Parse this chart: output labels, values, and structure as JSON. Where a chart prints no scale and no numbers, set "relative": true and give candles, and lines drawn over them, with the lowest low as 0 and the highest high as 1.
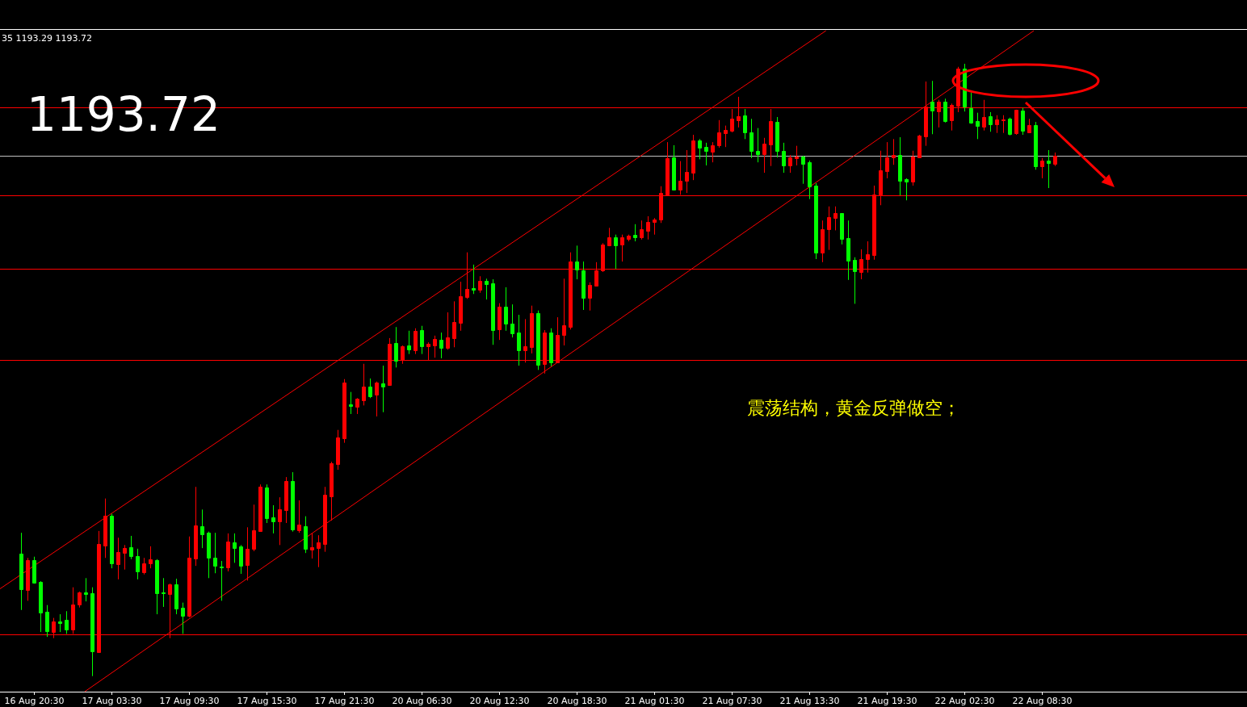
{
  "chart_data": {
    "type": "candlestick",
    "relative": true,
    "title": "35 1193.29 1193.72",
    "annotations": [
      "1193.72",
      "震荡结构，黄金反弹做空；"
    ],
    "categories": [
      null,
      null,
      "16 Aug 20:30",
      null,
      null,
      null,
      null,
      null,
      null,
      null,
      null,
      null,
      null,
      null,
      "17 Aug 03:30",
      null,
      null,
      null,
      null,
      null,
      null,
      null,
      null,
      null,
      null,
      null,
      "17 Aug 09:30",
      null,
      null,
      null,
      null,
      null,
      null,
      null,
      null,
      null,
      null,
      null,
      "17 Aug 15:30",
      null,
      null,
      null,
      null,
      null,
      null,
      null,
      null,
      null,
      null,
      null,
      "17 Aug 21:30",
      null,
      null,
      null,
      null,
      null,
      null,
      null,
      null,
      null,
      null,
      null,
      "20 Aug 06:30",
      null,
      null,
      null,
      null,
      null,
      null,
      null,
      null,
      null,
      null,
      null,
      "20 Aug 12:30",
      null,
      null,
      null,
      null,
      null,
      null,
      null,
      null,
      null,
      null,
      null,
      "20 Aug 18:30",
      null,
      null,
      null,
      null,
      null,
      null,
      null,
      null,
      null,
      null,
      null,
      "21 Aug 01:30",
      null,
      null,
      null,
      null,
      null,
      null,
      null,
      null,
      null,
      null,
      null,
      "21 Aug 07:30",
      null,
      null,
      null,
      null,
      null,
      null,
      null,
      null,
      null,
      null,
      null,
      "21 Aug 13:30",
      null,
      null,
      null,
      null,
      null,
      null,
      null,
      null,
      null,
      null,
      null,
      "21 Aug 19:30",
      null,
      null,
      null,
      null,
      null,
      null,
      null,
      null,
      null,
      null,
      null,
      "22 Aug 02:30",
      null,
      null,
      null,
      null,
      null,
      null,
      null,
      null,
      null,
      null,
      null,
      "22 Aug 08:30",
      null,
      null
    ],
    "ohlc": [
      [
        0.2,
        0.234,
        0.108,
        0.142
      ],
      [
        0.141,
        0.193,
        0.123,
        0.189
      ],
      [
        0.189,
        0.195,
        0.151,
        0.153
      ],
      [
        0.154,
        0.155,
        0.072,
        0.104
      ],
      [
        0.105,
        0.116,
        0.064,
        0.073
      ],
      [
        0.072,
        0.095,
        0.062,
        0.089
      ],
      [
        0.089,
        0.101,
        0.072,
        0.087
      ],
      [
        0.092,
        0.106,
        0.069,
        0.076
      ],
      [
        0.076,
        0.145,
        0.069,
        0.117
      ],
      [
        0.117,
        0.138,
        0.112,
        0.137
      ],
      [
        0.137,
        0.16,
        0.122,
        0.134
      ],
      [
        0.135,
        0.145,
        0,
        0.04
      ],
      [
        0.039,
        0.237,
        0.039,
        0.216
      ],
      [
        0.213,
        0.29,
        0.193,
        0.262
      ],
      [
        0.262,
        0.265,
        0.176,
        0.184
      ],
      [
        0.183,
        0.226,
        0.158,
        0.203
      ],
      [
        0.201,
        0.214,
        0.174,
        0.209
      ],
      [
        0.21,
        0.229,
        0.191,
        0.196
      ],
      [
        0.196,
        0.208,
        0.158,
        0.171
      ],
      [
        0.17,
        0.193,
        0.166,
        0.184
      ],
      [
        0.184,
        0.212,
        0.176,
        0.191
      ],
      [
        0.189,
        0.191,
        0.101,
        0.135
      ],
      [
        0.137,
        0.16,
        0.113,
        0.135
      ],
      [
        0.134,
        0.151,
        0.062,
        0.15
      ],
      [
        0.15,
        0.159,
        0.101,
        0.11
      ],
      [
        0.112,
        0.12,
        0.069,
        0.098
      ],
      [
        0.098,
        0.228,
        0.096,
        0.193
      ],
      [
        0.192,
        0.309,
        0.18,
        0.246
      ],
      [
        0.245,
        0.272,
        0.209,
        0.232
      ],
      [
        0.234,
        0.236,
        0.16,
        0.193
      ],
      [
        0.193,
        0.234,
        0.168,
        0.18
      ],
      [
        0.179,
        0.188,
        0.123,
        0.178
      ],
      [
        0.178,
        0.233,
        0.171,
        0.22
      ],
      [
        0.218,
        0.233,
        0.185,
        0.209
      ],
      [
        0.212,
        0.214,
        0.167,
        0.18
      ],
      [
        0.181,
        0.243,
        0.156,
        0.208
      ],
      [
        0.208,
        0.28,
        0.204,
        0.238
      ],
      [
        0.237,
        0.313,
        0.237,
        0.309
      ],
      [
        0.308,
        0.313,
        0.25,
        0.258
      ],
      [
        0.259,
        0.279,
        0.233,
        0.253
      ],
      [
        0.253,
        0.292,
        0.214,
        0.272
      ],
      [
        0.271,
        0.325,
        0.25,
        0.319
      ],
      [
        0.319,
        0.333,
        0.236,
        0.239
      ],
      [
        0.238,
        0.287,
        0.234,
        0.247
      ],
      [
        0.245,
        0.261,
        0.201,
        0.208
      ],
      [
        0.207,
        0.233,
        0.192,
        0.21
      ],
      [
        0.209,
        0.23,
        0.178,
        0.218
      ],
      [
        0.216,
        0.309,
        0.203,
        0.296
      ],
      [
        0.294,
        0.35,
        0.254,
        0.348
      ],
      [
        0.346,
        0.402,
        0.337,
        0.39
      ],
      [
        0.388,
        0.485,
        0.381,
        0.479
      ],
      [
        0.444,
        0.464,
        0.428,
        0.441
      ],
      [
        0.44,
        0.454,
        0.428,
        0.453
      ],
      [
        0.45,
        0.51,
        0.442,
        0.473
      ],
      [
        0.473,
        0.486,
        0.454,
        0.457
      ],
      [
        0.46,
        0.481,
        0.424,
        0.479
      ],
      [
        0.478,
        0.507,
        0.431,
        0.473
      ],
      [
        0.475,
        0.552,
        0.474,
        0.543
      ],
      [
        0.544,
        0.57,
        0.504,
        0.515
      ],
      [
        0.516,
        0.54,
        0.51,
        0.539
      ],
      [
        0.54,
        0.564,
        0.526,
        0.533
      ],
      [
        0.532,
        0.568,
        0.526,
        0.564
      ],
      [
        0.565,
        0.572,
        0.526,
        0.539
      ],
      [
        0.539,
        0.545,
        0.516,
        0.543
      ],
      [
        0.54,
        0.556,
        0.52,
        0.551
      ],
      [
        0.549,
        0.561,
        0.519,
        0.536
      ],
      [
        0.536,
        0.594,
        0.533,
        0.553
      ],
      [
        0.552,
        0.612,
        0.537,
        0.578
      ],
      [
        0.577,
        0.644,
        0.564,
        0.62
      ],
      [
        0.619,
        0.692,
        0.616,
        0.632
      ],
      [
        0.634,
        0.672,
        0.624,
        0.631
      ],
      [
        0.631,
        0.653,
        0.626,
        0.645
      ],
      [
        0.645,
        0.649,
        0.615,
        0.64
      ],
      [
        0.641,
        0.648,
        0.541,
        0.565
      ],
      [
        0.566,
        0.609,
        0.549,
        0.603
      ],
      [
        0.603,
        0.635,
        0.564,
        0.576
      ],
      [
        0.576,
        0.607,
        0.553,
        0.56
      ],
      [
        0.561,
        0.59,
        0.507,
        0.532
      ],
      [
        0.532,
        0.583,
        0.512,
        0.539
      ],
      [
        0.537,
        0.605,
        0.527,
        0.593
      ],
      [
        0.593,
        0.597,
        0.5,
        0.508
      ],
      [
        0.51,
        0.565,
        0.494,
        0.561
      ],
      [
        0.561,
        0.568,
        0.506,
        0.512
      ],
      [
        0.512,
        0.586,
        0.512,
        0.557
      ],
      [
        0.557,
        0.649,
        0.54,
        0.573
      ],
      [
        0.57,
        0.692,
        0.566,
        0.677
      ],
      [
        0.677,
        0.703,
        0.648,
        0.664
      ],
      [
        0.663,
        0.677,
        0.598,
        0.618
      ],
      [
        0.618,
        0.643,
        0.597,
        0.639
      ],
      [
        0.638,
        0.676,
        0.638,
        0.663
      ],
      [
        0.663,
        0.707,
        0.66,
        0.705
      ],
      [
        0.703,
        0.732,
        0.702,
        0.717
      ],
      [
        0.717,
        0.721,
        0.665,
        0.703
      ],
      [
        0.705,
        0.721,
        0.677,
        0.717
      ],
      [
        0.714,
        0.721,
        0.71,
        0.719
      ],
      [
        0.721,
        0.738,
        0.71,
        0.717
      ],
      [
        0.717,
        0.744,
        0.713,
        0.73
      ],
      [
        0.727,
        0.751,
        0.713,
        0.742
      ],
      [
        0.742,
        0.748,
        0.721,
        0.746
      ],
      [
        0.746,
        0.8,
        0.74,
        0.789
      ],
      [
        0.786,
        0.872,
        0.786,
        0.846
      ],
      [
        0.847,
        0.867,
        0.793,
        0.794
      ],
      [
        0.794,
        0.841,
        0.786,
        0.809
      ],
      [
        0.809,
        0.859,
        0.789,
        0.823
      ],
      [
        0.822,
        0.884,
        0.81,
        0.875
      ],
      [
        0.875,
        0.877,
        0.844,
        0.863
      ],
      [
        0.864,
        0.871,
        0.834,
        0.858
      ],
      [
        0.856,
        0.872,
        0.839,
        0.867
      ],
      [
        0.867,
        0.908,
        0.863,
        0.888
      ],
      [
        0.887,
        0.899,
        0.864,
        0.892
      ],
      [
        0.891,
        0.926,
        0.888,
        0.91
      ],
      [
        0.908,
        0.946,
        0.896,
        0.914
      ],
      [
        0.916,
        0.926,
        0.877,
        0.888
      ],
      [
        0.888,
        0.91,
        0.846,
        0.858
      ],
      [
        0.858,
        0.895,
        0.839,
        0.852
      ],
      [
        0.852,
        0.879,
        0.822,
        0.87
      ],
      [
        0.868,
        0.926,
        0.833,
        0.906
      ],
      [
        0.905,
        0.913,
        0.847,
        0.858
      ],
      [
        0.858,
        0.871,
        0.822,
        0.834
      ],
      [
        0.834,
        0.851,
        0.822,
        0.847
      ],
      [
        0.846,
        0.866,
        0.834,
        0.848
      ],
      [
        0.848,
        0.85,
        0.804,
        0.837
      ],
      [
        0.839,
        0.842,
        0.779,
        0.8
      ],
      [
        0.801,
        0.805,
        0.681,
        0.692
      ],
      [
        0.692,
        0.744,
        0.676,
        0.73
      ],
      [
        0.73,
        0.767,
        0.696,
        0.75
      ],
      [
        0.748,
        0.767,
        0.728,
        0.756
      ],
      [
        0.756,
        0.756,
        0.705,
        0.714
      ],
      [
        0.715,
        0.744,
        0.647,
        0.678
      ],
      [
        0.68,
        0.684,
        0.608,
        0.661
      ],
      [
        0.66,
        0.697,
        0.648,
        0.681
      ],
      [
        0.681,
        0.71,
        0.659,
        0.689
      ],
      [
        0.688,
        0.801,
        0.68,
        0.786
      ],
      [
        0.787,
        0.858,
        0.769,
        0.826
      ],
      [
        0.825,
        0.872,
        0.813,
        0.847
      ],
      [
        0.847,
        0.877,
        0.835,
        0.851
      ],
      [
        0.851,
        0.88,
        0.785,
        0.809
      ],
      [
        0.812,
        0.813,
        0.777,
        0.808
      ],
      [
        0.808,
        0.858,
        0.801,
        0.848
      ],
      [
        0.847,
        0.884,
        0.847,
        0.883
      ],
      [
        0.881,
        0.971,
        0.866,
        0.93
      ],
      [
        0.938,
        0.972,
        0.885,
        0.924
      ],
      [
        0.922,
        0.941,
        0.896,
        0.938
      ],
      [
        0.938,
        0.943,
        0.904,
        0.906
      ],
      [
        0.908,
        0.935,
        0.891,
        0.933
      ],
      [
        0.931,
        0.995,
        0.921,
        0.992
      ],
      [
        0.992,
        1,
        0.922,
        0.93
      ],
      [
        0.928,
        0.953,
        0.902,
        0.904
      ],
      [
        0.906,
        0.92,
        0.877,
        0.899
      ],
      [
        0.897,
        0.941,
        0.891,
        0.913
      ],
      [
        0.914,
        0.921,
        0.889,
        0.901
      ],
      [
        0.901,
        0.916,
        0.887,
        0.909
      ],
      [
        0.908,
        0.916,
        0.887,
        0.909
      ],
      [
        0.91,
        0.912,
        0.883,
        0.885
      ],
      [
        0.887,
        0.925,
        0.884,
        0.925
      ],
      [
        0.924,
        0.928,
        0.884,
        0.891
      ],
      [
        0.888,
        0.91,
        0.888,
        0.9
      ],
      [
        0.9,
        0.905,
        0.827,
        0.833
      ],
      [
        0.833,
        0.846,
        0.813,
        0.842
      ],
      [
        0.842,
        0.859,
        0.797,
        0.838
      ],
      [
        0.837,
        0.855,
        0.833,
        0.85
      ]
    ],
    "colors": [
      "#00ff00",
      "#ff0000",
      "#00ff00",
      "#00ff00",
      "#00ff00",
      "#ff0000",
      "#00ff00",
      "#00ff00",
      "#ff0000",
      "#ff0000",
      "#00ff00",
      "#00ff00",
      "#ff0000",
      "#ff0000",
      "#00ff00",
      "#ff0000",
      "#ff0000",
      "#00ff00",
      "#00ff00",
      "#ff0000",
      "#ff0000",
      "#00ff00",
      "#00ff00",
      "#ff0000",
      "#00ff00",
      "#00ff00",
      "#ff0000",
      "#ff0000",
      "#00ff00",
      "#00ff00",
      "#00ff00",
      "#00ff00",
      "#ff0000",
      "#00ff00",
      "#00ff00",
      "#ff0000",
      "#ff0000",
      "#ff0000",
      "#00ff00",
      "#00ff00",
      "#ff0000",
      "#ff0000",
      "#00ff00",
      "#ff0000",
      "#00ff00",
      "#ff0000",
      "#ff0000",
      "#ff0000",
      "#ff0000",
      "#ff0000",
      "#ff0000",
      "#00ff00",
      "#ff0000",
      "#ff0000",
      "#00ff00",
      "#ff0000",
      "#00ff00",
      "#ff0000",
      "#00ff00",
      "#ff0000",
      "#00ff00",
      "#ff0000",
      "#00ff00",
      "#ff0000",
      "#ff0000",
      "#00ff00",
      "#ff0000",
      "#ff0000",
      "#ff0000",
      "#ff0000",
      "#00ff00",
      "#ff0000",
      "#00ff00",
      "#00ff00",
      "#ff0000",
      "#00ff00",
      "#00ff00",
      "#00ff00",
      "#ff0000",
      "#ff0000",
      "#00ff00",
      "#ff0000",
      "#00ff00",
      "#ff0000",
      "#ff0000",
      "#ff0000",
      "#00ff00",
      "#00ff00",
      "#ff0000",
      "#ff0000",
      "#ff0000",
      "#ff0000",
      "#00ff00",
      "#ff0000",
      "#ff0000",
      "#00ff00",
      "#ff0000",
      "#ff0000",
      "#ff0000",
      "#ff0000",
      "#ff0000",
      "#00ff00",
      "#ff0000",
      "#ff0000",
      "#ff0000",
      "#00ff00",
      "#00ff00",
      "#ff0000",
      "#ff0000",
      "#ff0000",
      "#ff0000",
      "#ff0000",
      "#00ff00",
      "#00ff00",
      "#00ff00",
      "#ff0000",
      "#ff0000",
      "#00ff00",
      "#00ff00",
      "#ff0000",
      "#ff0000",
      "#00ff00",
      "#00ff00",
      "#00ff00",
      "#ff0000",
      "#ff0000",
      "#ff0000",
      "#00ff00",
      "#00ff00",
      "#00ff00",
      "#ff0000",
      "#ff0000",
      "#ff0000",
      "#ff0000",
      "#ff0000",
      "#ff0000",
      "#00ff00",
      "#00ff00",
      "#ff0000",
      "#ff0000",
      "#ff0000",
      "#00ff00",
      "#ff0000",
      "#00ff00",
      "#ff0000",
      "#ff0000",
      "#00ff00",
      "#00ff00",
      "#00ff00",
      "#ff0000",
      "#00ff00",
      "#ff0000",
      "#ff0000",
      "#00ff00",
      "#ff0000",
      "#00ff00",
      "#ff0000",
      "#00ff00",
      "#ff0000",
      "#00ff00",
      "#ff0000"
    ],
    "series": [
      {
        "type": "line",
        "x": [
          "17 Aug 03:30",
          "22 Aug 02:30"
        ],
        "values": [
          0.005,
          0.975
        ],
        "color": "#ff0000"
      },
      {
        "type": "line",
        "x": [
          "16 Aug 20:30",
          "21 Aug 07:30"
        ],
        "values": [
          0.18,
          0.95
        ],
        "color": "#ff0000"
      }
    ],
    "ref_lines": [
      {
        "axis": "y",
        "value": 0.929,
        "color": "#ff0000"
      },
      {
        "axis": "y",
        "value": 0.85,
        "color": "#c0c0c0"
      },
      {
        "axis": "y",
        "value": 0.785,
        "color": "#ff0000"
      },
      {
        "axis": "y",
        "value": 0.665,
        "color": "#ff0000"
      },
      {
        "axis": "y",
        "value": 0.516,
        "color": "#ff0000"
      },
      {
        "axis": "y",
        "value": 0.068,
        "color": "#ff0000"
      }
    ]
  }
}
